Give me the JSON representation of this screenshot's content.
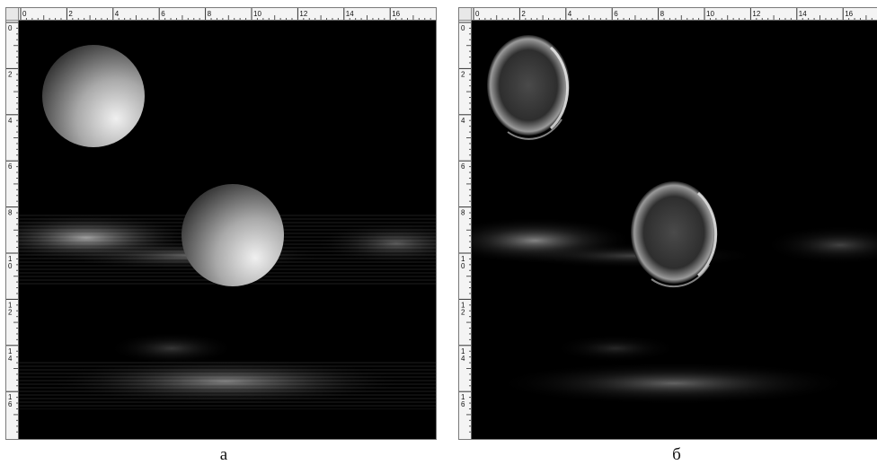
{
  "rulers": {
    "top_labels": [
      "0",
      "2",
      "4",
      "6",
      "8",
      "10",
      "12",
      "14",
      "16"
    ],
    "left_labels": [
      "0",
      "2",
      "4",
      "6",
      "8",
      "1\n0",
      "1\n2",
      "1\n4",
      "1\n6"
    ]
  },
  "panels": [
    {
      "id": "a",
      "caption": "а"
    },
    {
      "id": "б",
      "caption": "б"
    }
  ]
}
